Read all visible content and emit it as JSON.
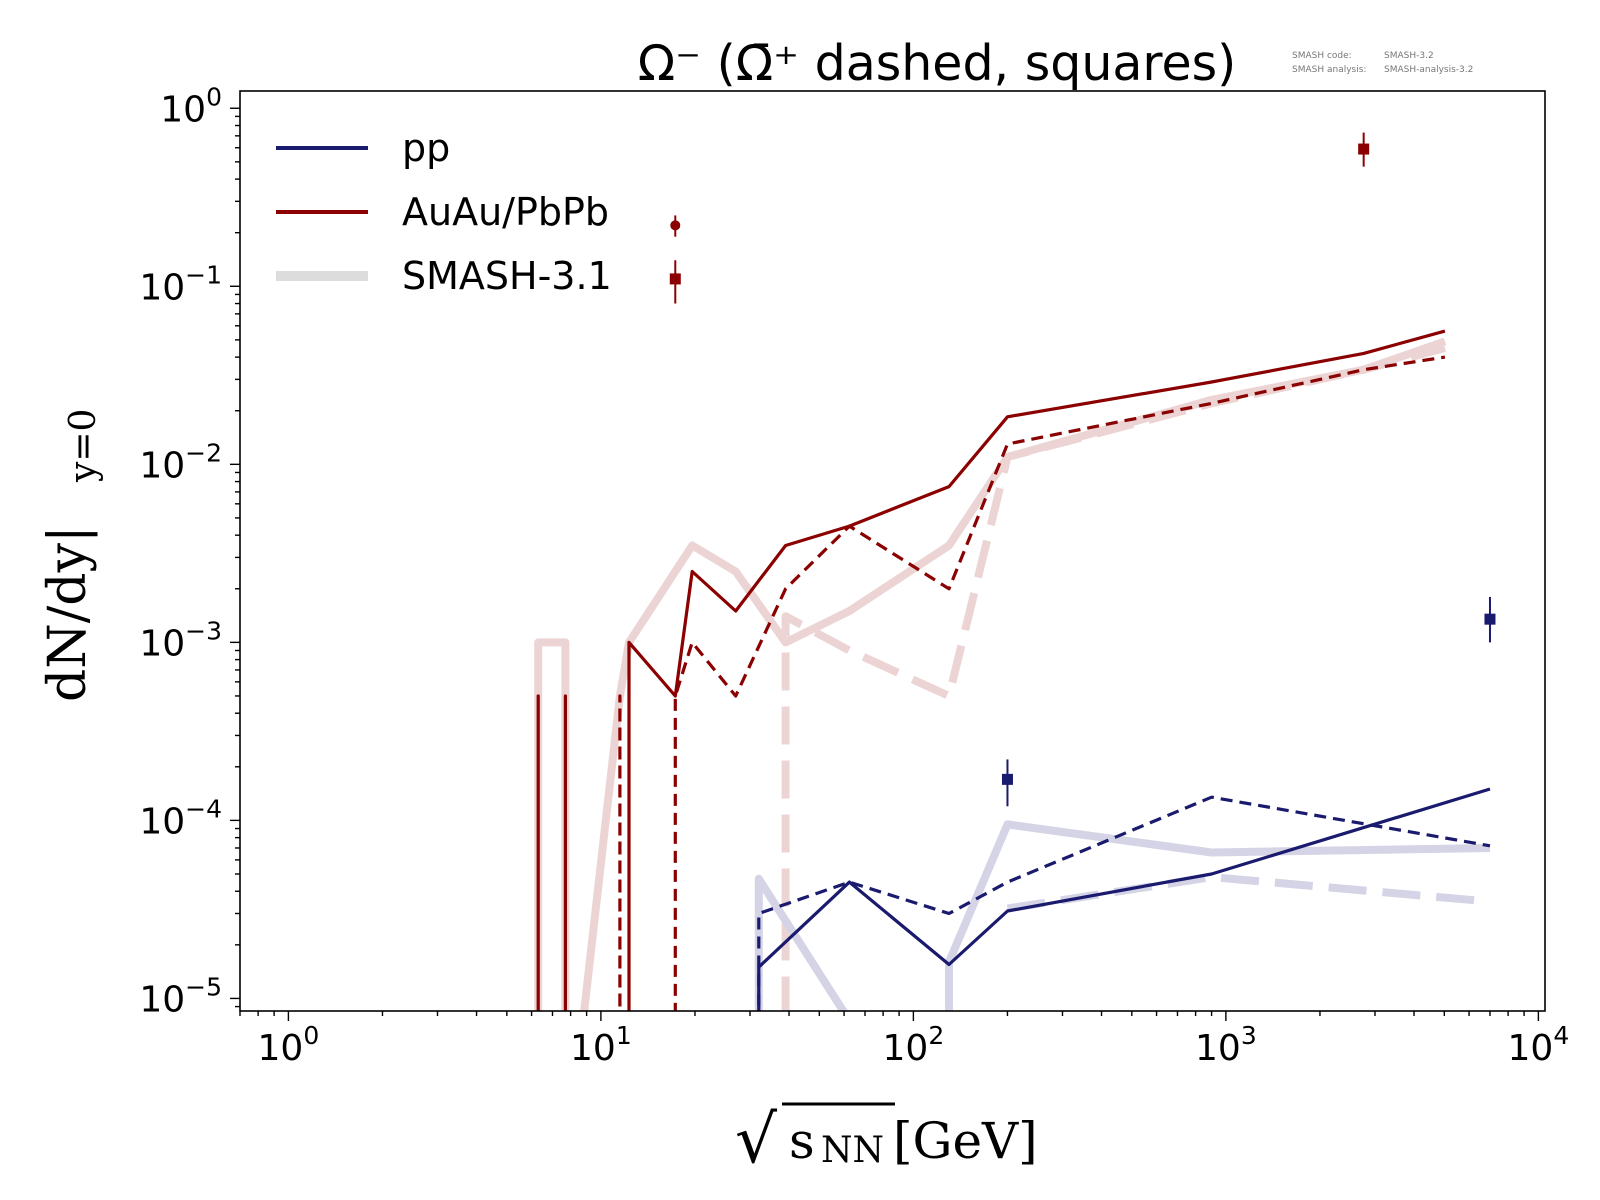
{
  "chart_data": {
    "type": "line",
    "title": "Ω⁻ (Ω̄⁺ dashed, squares)",
    "info": {
      "code_label": "SMASH code:",
      "code_value": "SMASH-3.2",
      "analysis_label": "SMASH analysis:",
      "analysis_value": "SMASH-analysis-3.2"
    },
    "xlabel": {
      "prefix": "√",
      "main": "s",
      "sub": "NN",
      "suffix": " [GeV]"
    },
    "ylabel": {
      "main": "dN/dy|",
      "sub": "y=0"
    },
    "xscale": "log",
    "yscale": "log",
    "xlim": [
      0.7,
      10500
    ],
    "ylim": [
      8.5e-06,
      1.25
    ],
    "grid": false,
    "legend_position": "top-left",
    "x_ticks": [
      {
        "value": 1,
        "base": "10",
        "exp": "0"
      },
      {
        "value": 10,
        "base": "10",
        "exp": "1"
      },
      {
        "value": 100,
        "base": "10",
        "exp": "2"
      },
      {
        "value": 1000,
        "base": "10",
        "exp": "3"
      },
      {
        "value": 10000,
        "base": "10",
        "exp": "4"
      }
    ],
    "y_ticks": [
      {
        "value": 1,
        "base": "10",
        "exp": "0"
      },
      {
        "value": 0.1,
        "base": "10",
        "exp": "−1"
      },
      {
        "value": 0.01,
        "base": "10",
        "exp": "−2"
      },
      {
        "value": 0.001,
        "base": "10",
        "exp": "−3"
      },
      {
        "value": 0.0001,
        "base": "10",
        "exp": "−4"
      },
      {
        "value": 1e-05,
        "base": "10",
        "exp": "−5"
      }
    ],
    "legend": [
      {
        "label": "pp",
        "color": "#1a1a6e",
        "style": "solid"
      },
      {
        "label": "AuAu/PbPb",
        "color": "#8b0000",
        "style": "solid"
      },
      {
        "label": "SMASH-3.1",
        "color": "#dcdcdc",
        "style": "thick"
      }
    ],
    "series": [
      {
        "system": "AuAu/PbPb",
        "particle": "Ω⁻",
        "kind": "current",
        "style": "solid",
        "color": "#8b0000",
        "points": [
          [
            6.3,
            1e-06
          ],
          [
            6.3,
            0.0005
          ],
          [
            6.3,
            1e-06
          ],
          [
            7.7,
            1e-06
          ],
          [
            7.7,
            0.0005
          ],
          [
            7.7,
            1e-06
          ],
          [
            12.3,
            1e-06
          ],
          [
            12.3,
            0.001
          ],
          [
            17.3,
            0.0005
          ],
          [
            19.6,
            0.0025
          ],
          [
            27,
            0.0015
          ],
          [
            39,
            0.0035
          ],
          [
            62.4,
            0.0045
          ],
          [
            130,
            0.0075
          ],
          [
            200,
            0.0185
          ],
          [
            900,
            0.029
          ],
          [
            2760,
            0.042
          ],
          [
            5020,
            0.056
          ]
        ]
      },
      {
        "system": "AuAu/PbPb",
        "particle": "Ω̄⁺",
        "kind": "current",
        "style": "dashed",
        "color": "#8b0000",
        "points": [
          [
            11.5,
            1e-06
          ],
          [
            11.5,
            0.0005
          ],
          [
            11.5,
            1e-06
          ],
          [
            17.3,
            1e-06
          ],
          [
            17.3,
            0.0005
          ],
          [
            19.6,
            0.001
          ],
          [
            27,
            0.0005
          ],
          [
            39,
            0.002
          ],
          [
            62.4,
            0.0045
          ],
          [
            130,
            0.002
          ],
          [
            200,
            0.013
          ],
          [
            900,
            0.022
          ],
          [
            2760,
            0.034
          ],
          [
            5020,
            0.04
          ]
        ]
      },
      {
        "system": "AuAu/PbPb",
        "particle": "Ω⁻",
        "kind": "SMASH-3.1",
        "style": "solid",
        "color": "#ecd4d4",
        "points": [
          [
            6.3,
            1e-06
          ],
          [
            6.3,
            0.001
          ],
          [
            7.7,
            0.001
          ],
          [
            7.7,
            1e-06
          ],
          [
            11.5,
            0.0005
          ],
          [
            12.3,
            0.001
          ],
          [
            19.6,
            0.0035
          ],
          [
            27,
            0.0025
          ],
          [
            39,
            0.001
          ],
          [
            62.4,
            0.0015
          ],
          [
            130,
            0.0035
          ],
          [
            200,
            0.011
          ],
          [
            900,
            0.023
          ],
          [
            2760,
            0.034
          ],
          [
            5020,
            0.049
          ]
        ]
      },
      {
        "system": "AuAu/PbPb",
        "particle": "Ω̄⁺",
        "kind": "SMASH-3.1",
        "style": "dashed",
        "color": "#ecd4d4",
        "points": [
          [
            39,
            1e-06
          ],
          [
            39,
            0.0014
          ],
          [
            62.4,
            0.0009
          ],
          [
            130,
            0.0005
          ],
          [
            200,
            0.011
          ],
          [
            900,
            0.022
          ],
          [
            2760,
            0.034
          ],
          [
            5020,
            0.045
          ]
        ]
      },
      {
        "system": "pp",
        "particle": "Ω⁻",
        "kind": "current",
        "style": "solid",
        "color": "#1a1a6e",
        "points": [
          [
            32,
            1e-06
          ],
          [
            32,
            1.5e-05
          ],
          [
            62.4,
            4.5e-05
          ],
          [
            130,
            1.55e-05
          ],
          [
            200,
            3.1e-05
          ],
          [
            900,
            5e-05
          ],
          [
            7000,
            0.00015
          ]
        ]
      },
      {
        "system": "pp",
        "particle": "Ω̄⁺",
        "kind": "current",
        "style": "dashed",
        "color": "#1a1a6e",
        "points": [
          [
            32,
            1e-06
          ],
          [
            32,
            3e-05
          ],
          [
            62.4,
            4.5e-05
          ],
          [
            130,
            3e-05
          ],
          [
            200,
            4.5e-05
          ],
          [
            900,
            0.000135
          ],
          [
            7000,
            7.2e-05
          ]
        ]
      },
      {
        "system": "pp",
        "particle": "Ω⁻",
        "kind": "SMASH-3.1",
        "style": "solid",
        "color": "#d4d4e6",
        "points": [
          [
            32,
            1e-06
          ],
          [
            32,
            4.7e-05
          ],
          [
            130,
            1e-06
          ],
          [
            130,
            1.6e-05
          ],
          [
            200,
            9.5e-05
          ],
          [
            900,
            6.6e-05
          ],
          [
            7000,
            7e-05
          ]
        ]
      },
      {
        "system": "pp",
        "particle": "Ω̄⁺",
        "kind": "SMASH-3.1",
        "style": "dashed",
        "color": "#d4d4e6",
        "points": [
          [
            200,
            3.2e-05
          ],
          [
            900,
            4.8e-05
          ],
          [
            7000,
            3.5e-05
          ]
        ]
      }
    ],
    "measurements": [
      {
        "system": "AuAu/PbPb",
        "particle": "Ω⁻",
        "marker": "circle",
        "color": "#8b0000",
        "x": 17.3,
        "y": 0.22,
        "ylow": 0.19,
        "yhigh": 0.25
      },
      {
        "system": "AuAu/PbPb",
        "particle": "Ω̄⁺",
        "marker": "square",
        "color": "#8b0000",
        "x": 17.3,
        "y": 0.11,
        "ylow": 0.08,
        "yhigh": 0.14
      },
      {
        "system": "AuAu/PbPb",
        "particle": "Ω̄⁺",
        "marker": "square",
        "color": "#8b0000",
        "x": 2760,
        "y": 0.59,
        "ylow": 0.47,
        "yhigh": 0.73
      },
      {
        "system": "pp",
        "particle": "Ω̄⁺",
        "marker": "square",
        "color": "#1a1a6e",
        "x": 200,
        "y": 0.00017,
        "ylow": 0.00012,
        "yhigh": 0.00022
      },
      {
        "system": "pp",
        "particle": "Ω̄⁺",
        "marker": "square",
        "color": "#1a1a6e",
        "x": 7000,
        "y": 0.00135,
        "ylow": 0.001,
        "yhigh": 0.0018
      }
    ]
  }
}
